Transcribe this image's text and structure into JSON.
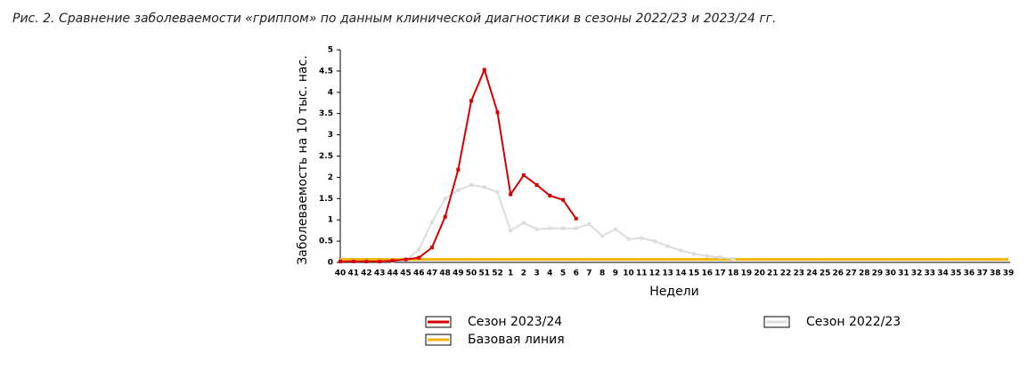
{
  "chart_data": {
    "type": "line",
    "title": "Рис. 2. Сравнение заболеваемости «гриппом» по данным клинической диагностики в сезоны 2022/23 и 2023/24 гг.",
    "x_label": "Недели",
    "y_label": "Заболеваемость на 10 тыс. нас.",
    "categories": [
      "40",
      "41",
      "42",
      "43",
      "44",
      "45",
      "46",
      "47",
      "48",
      "49",
      "50",
      "51",
      "52",
      "1",
      "2",
      "3",
      "4",
      "5",
      "6",
      "7",
      "8",
      "9",
      "10",
      "11",
      "12",
      "13",
      "14",
      "15",
      "16",
      "17",
      "18",
      "19",
      "20",
      "21",
      "22",
      "23",
      "24",
      "25",
      "26",
      "27",
      "28",
      "29",
      "30",
      "31",
      "32",
      "33",
      "34",
      "35",
      "36",
      "37",
      "38",
      "39"
    ],
    "ylim": [
      0,
      5
    ],
    "yticks": [
      0,
      0.5,
      1,
      1.5,
      2,
      2.5,
      3,
      3.5,
      4,
      4.5,
      5
    ],
    "series": [
      {
        "name": "Сезон 2023/24",
        "color": "#d40000",
        "markers": true,
        "values": [
          0.02,
          0.02,
          0.02,
          0.02,
          0.04,
          0.07,
          0.11,
          0.35,
          1.07,
          2.18,
          3.8,
          4.53,
          3.53,
          1.6,
          2.05,
          1.82,
          1.57,
          1.47,
          1.03,
          null,
          null,
          null,
          null,
          null,
          null,
          null,
          null,
          null,
          null,
          null,
          null,
          null,
          null,
          null,
          null,
          null,
          null,
          null,
          null,
          null,
          null,
          null,
          null,
          null,
          null,
          null,
          null,
          null,
          null,
          null,
          null,
          null
        ]
      },
      {
        "name": "Сезон 2022/23",
        "color": "#dcdcdc",
        "markers": true,
        "values": [
          0.02,
          0.02,
          0.02,
          0.02,
          0.03,
          0.05,
          0.3,
          0.95,
          1.5,
          1.7,
          1.82,
          1.77,
          1.65,
          0.75,
          0.93,
          0.78,
          0.8,
          0.8,
          0.8,
          0.9,
          0.62,
          0.78,
          0.55,
          0.57,
          0.5,
          0.38,
          0.28,
          0.2,
          0.15,
          0.12,
          0.08,
          null,
          null,
          null,
          null,
          null,
          null,
          null,
          null,
          null,
          null,
          null,
          null,
          null,
          null,
          null,
          null,
          null,
          null,
          null,
          null,
          null
        ]
      },
      {
        "name": "Базовая линия",
        "color": "#f0b400",
        "markers": false,
        "values": [
          0.07,
          0.07,
          0.07,
          0.07,
          0.07,
          0.07,
          0.07,
          0.07,
          0.07,
          0.07,
          0.07,
          0.07,
          0.07,
          0.07,
          0.07,
          0.07,
          0.07,
          0.07,
          0.07,
          0.07,
          0.07,
          0.07,
          0.07,
          0.07,
          0.07,
          0.07,
          0.07,
          0.07,
          0.07,
          0.07,
          0.07,
          0.07,
          0.07,
          0.07,
          0.07,
          0.07,
          0.07,
          0.07,
          0.07,
          0.07,
          0.07,
          0.07,
          0.07,
          0.07,
          0.07,
          0.07,
          0.07,
          0.07,
          0.07,
          0.07,
          0.07,
          0.07
        ]
      }
    ]
  }
}
